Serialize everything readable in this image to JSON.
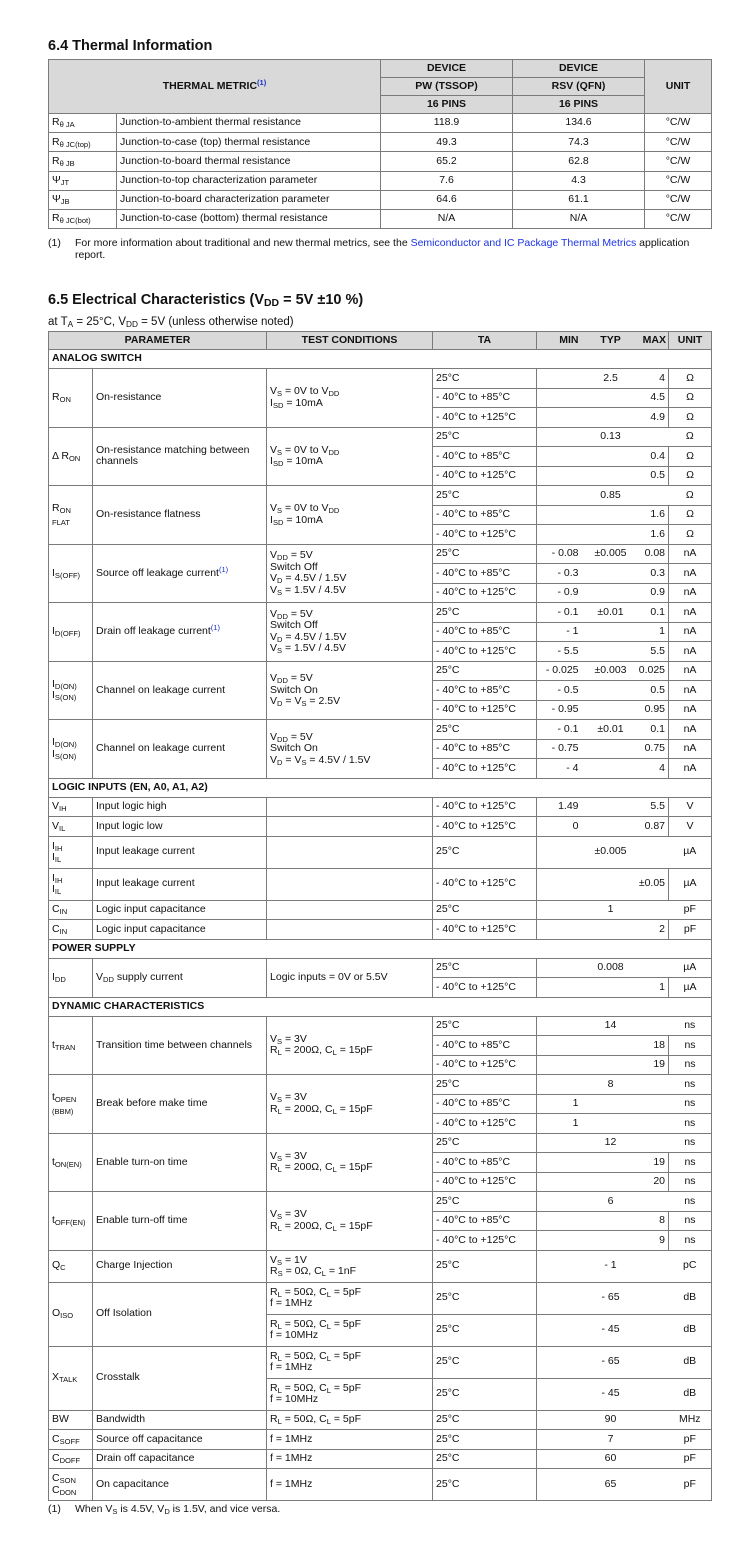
{
  "thermal": {
    "title": "6.4 Thermal Information",
    "header": {
      "metric": "THERMAL METRIC^{(1)}",
      "device1": "DEVICE",
      "device2": "DEVICE",
      "pkg1": "PW (TSSOP)",
      "pkg2": "RSV (QFN)",
      "pins1": "16 PINS",
      "pins2": "16 PINS",
      "unit": "UNIT"
    },
    "rows": [
      {
        "sym": "R_{θ JA}",
        "desc": "Junction-to-ambient thermal resistance",
        "pw": "118.9",
        "rsv": "134.6",
        "unit": "°C/W"
      },
      {
        "sym": "R_{θ JC(top)}",
        "desc": "Junction-to-case (top) thermal resistance",
        "pw": "49.3",
        "rsv": "74.3",
        "unit": "°C/W"
      },
      {
        "sym": "R_{θ JB}",
        "desc": "Junction-to-board thermal resistance",
        "pw": "65.2",
        "rsv": "62.8",
        "unit": "°C/W"
      },
      {
        "sym": "Ψ_{JT}",
        "desc": "Junction-to-top characterization parameter",
        "pw": "7.6",
        "rsv": "4.3",
        "unit": "°C/W"
      },
      {
        "sym": "Ψ_{JB}",
        "desc": "Junction-to-board characterization parameter",
        "pw": "64.6",
        "rsv": "61.1",
        "unit": "°C/W"
      },
      {
        "sym": "R_{θ JC(bot)}",
        "desc": "Junction-to-case (bottom) thermal resistance",
        "pw": "N/A",
        "rsv": "N/A",
        "unit": "°C/W"
      }
    ],
    "footnote": {
      "num": "(1)",
      "text_before": "For more information about traditional and new thermal metrics, see the ",
      "link": "Semiconductor and IC Package Thermal Metrics",
      "text_after": " application",
      "text_line2": "report."
    }
  },
  "electrical": {
    "title": "6.5 Electrical Characteristics (V_{DD} = 5V ±10 %)",
    "subtitle": "at T_{A} = 25°C, V_{DD} = 5V (unless otherwise noted)",
    "header": {
      "parameter": "PARAMETER",
      "conditions": "TEST CONDITIONS",
      "ta": "TA",
      "min": "MIN",
      "typ": "TYP",
      "max": "MAX",
      "unit": "UNIT"
    },
    "sections": [
      {
        "label": "ANALOG SWITCH",
        "groups": [
          {
            "sym": "R_{ON}",
            "param": "On-resistance",
            "cond": "V_{S} = 0V to V_{DD}\nI_{SD} = 10mA",
            "rows": [
              {
                "ta": "25°C",
                "min": "",
                "typ": "2.5",
                "max": "4",
                "unit": "Ω"
              },
              {
                "ta": "- 40°C to +85°C",
                "min": "",
                "typ": "",
                "max": "4.5",
                "unit": "Ω"
              },
              {
                "ta": "- 40°C to +125°C",
                "min": "",
                "typ": "",
                "max": "4.9",
                "unit": "Ω"
              }
            ]
          },
          {
            "sym": "Δ R_{ON}",
            "param": "On-resistance matching between\nchannels",
            "cond": "V_{S} = 0V to V_{DD}\nI_{SD} = 10mA",
            "rows": [
              {
                "ta": "25°C",
                "min": "",
                "typ": "0.13",
                "max": "",
                "unit": "Ω"
              },
              {
                "ta": "- 40°C to +85°C",
                "min": "",
                "typ": "",
                "max": "0.4",
                "unit": "Ω"
              },
              {
                "ta": "- 40°C to +125°C",
                "min": "",
                "typ": "",
                "max": "0.5",
                "unit": "Ω"
              }
            ]
          },
          {
            "sym": "R_{ON}\n_{FLAT}",
            "param": "On-resistance flatness",
            "cond": "V_{S} = 0V to V_{DD}\nI_{SD} = 10mA",
            "rows": [
              {
                "ta": "25°C",
                "min": "",
                "typ": "0.85",
                "max": "",
                "unit": "Ω"
              },
              {
                "ta": "- 40°C to +85°C",
                "min": "",
                "typ": "",
                "max": "1.6",
                "unit": "Ω"
              },
              {
                "ta": "- 40°C to +125°C",
                "min": "",
                "typ": "",
                "max": "1.6",
                "unit": "Ω"
              }
            ]
          },
          {
            "sym": "I_{S(OFF)}",
            "param": "Source off leakage current^{(1)}",
            "cond": "V_{DD} = 5V\nSwitch Off\nV_{D} = 4.5V / 1.5V\nV_{S} = 1.5V / 4.5V",
            "rows": [
              {
                "ta": "25°C",
                "min": "- 0.08",
                "typ": "±0.005",
                "max": "0.08",
                "unit": "nA"
              },
              {
                "ta": "- 40°C to +85°C",
                "min": "- 0.3",
                "typ": "",
                "max": "0.3",
                "unit": "nA"
              },
              {
                "ta": "- 40°C to +125°C",
                "min": "- 0.9",
                "typ": "",
                "max": "0.9",
                "unit": "nA"
              }
            ]
          },
          {
            "sym": "I_{D(OFF)}",
            "param": "Drain off leakage current^{(1)}",
            "cond": "V_{DD} = 5V\nSwitch Off\nV_{D} = 4.5V / 1.5V\nV_{S} = 1.5V / 4.5V",
            "rows": [
              {
                "ta": "25°C",
                "min": "- 0.1",
                "typ": "±0.01",
                "max": "0.1",
                "unit": "nA"
              },
              {
                "ta": "- 40°C to +85°C",
                "min": "- 1",
                "typ": "",
                "max": "1",
                "unit": "nA"
              },
              {
                "ta": "- 40°C to +125°C",
                "min": "- 5.5",
                "typ": "",
                "max": "5.5",
                "unit": "nA"
              }
            ]
          },
          {
            "sym": "I_{D(ON)}\nI_{S(ON)}",
            "param": "Channel on leakage current",
            "cond": "V_{DD} = 5V\nSwitch On\nV_{D} = V_{S} = 2.5V",
            "rows": [
              {
                "ta": "25°C",
                "min": "- 0.025",
                "typ": "±0.003",
                "max": "0.025",
                "unit": "nA"
              },
              {
                "ta": "- 40°C to +85°C",
                "min": "- 0.5",
                "typ": "",
                "max": "0.5",
                "unit": "nA"
              },
              {
                "ta": "- 40°C to +125°C",
                "min": "- 0.95",
                "typ": "",
                "max": "0.95",
                "unit": "nA"
              }
            ]
          },
          {
            "sym": "I_{D(ON)}\nI_{S(ON)}",
            "param": "Channel on leakage current",
            "cond": "V_{DD} = 5V\nSwitch On\nV_{D} = V_{S} = 4.5V / 1.5V",
            "rows": [
              {
                "ta": "25°C",
                "min": "- 0.1",
                "typ": "±0.01",
                "max": "0.1",
                "unit": "nA"
              },
              {
                "ta": "- 40°C to +85°C",
                "min": "- 0.75",
                "typ": "",
                "max": "0.75",
                "unit": "nA"
              },
              {
                "ta": "- 40°C to +125°C",
                "min": "- 4",
                "typ": "",
                "max": "4",
                "unit": "nA"
              }
            ]
          }
        ]
      },
      {
        "label": "LOGIC INPUTS (EN, A0, A1, A2)",
        "groups": [
          {
            "sym": "V_{IH}",
            "param": "Input logic high",
            "cond": "",
            "rows": [
              {
                "ta": "- 40°C to +125°C",
                "min": "1.49",
                "typ": "",
                "max": "5.5",
                "unit": "V"
              }
            ]
          },
          {
            "sym": "V_{IL}",
            "param": "Input logic low",
            "cond": "",
            "rows": [
              {
                "ta": "- 40°C to +125°C",
                "min": "0",
                "typ": "",
                "max": "0.87",
                "unit": "V"
              }
            ]
          },
          {
            "sym": "I_{IH}\nI_{IL}",
            "param": "Input leakage current",
            "cond": "",
            "tall": true,
            "rows": [
              {
                "ta": "25°C",
                "min": "",
                "typ": "±0.005",
                "max": "",
                "unit": "µA"
              }
            ]
          },
          {
            "sym": "I_{IH}\nI_{IL}",
            "param": "Input leakage current",
            "cond": "",
            "tall": true,
            "rows": [
              {
                "ta": "- 40°C to +125°C",
                "min": "",
                "typ": "",
                "max": "±0.05",
                "unit": "µA"
              }
            ]
          },
          {
            "sym": "C_{IN}",
            "param": "Logic input capacitance",
            "cond": "",
            "rows": [
              {
                "ta": "25°C",
                "min": "",
                "typ": "1",
                "max": "",
                "unit": "pF"
              }
            ]
          },
          {
            "sym": "C_{IN}",
            "param": "Logic input capacitance",
            "cond": "",
            "rows": [
              {
                "ta": "- 40°C to +125°C",
                "min": "",
                "typ": "",
                "max": "2",
                "unit": "pF"
              }
            ]
          }
        ]
      },
      {
        "label": "POWER SUPPLY",
        "groups": [
          {
            "sym": "I_{DD}",
            "param": "V_{DD} supply current",
            "cond": "Logic inputs = 0V or 5.5V",
            "rows": [
              {
                "ta": "25°C",
                "min": "",
                "typ": "0.008",
                "max": "",
                "unit": "µA"
              },
              {
                "ta": "- 40°C to +125°C",
                "min": "",
                "typ": "",
                "max": "1",
                "unit": "µA"
              }
            ]
          }
        ]
      },
      {
        "label": "DYNAMIC CHARACTERISTICS",
        "groups": [
          {
            "sym": "t_{TRAN}",
            "param": "Transition time between channels",
            "cond": "V_{S} = 3V\nR_{L} = 200Ω, C_{L} = 15pF",
            "rows": [
              {
                "ta": "25°C",
                "min": "",
                "typ": "14",
                "max": "",
                "unit": "ns"
              },
              {
                "ta": "- 40°C to +85°C",
                "min": "",
                "typ": "",
                "max": "18",
                "unit": "ns"
              },
              {
                "ta": "- 40°C to +125°C",
                "min": "",
                "typ": "",
                "max": "19",
                "unit": "ns"
              }
            ]
          },
          {
            "sym": "t_{OPEN}\n_{(BBM)}",
            "param": "Break before make time",
            "cond": "V_{S} = 3V\nR_{L} = 200Ω, C_{L} = 15pF",
            "rows": [
              {
                "ta": "25°C",
                "min": "",
                "typ": "8",
                "max": "",
                "unit": "ns"
              },
              {
                "ta": "- 40°C to +85°C",
                "min": "1",
                "typ": "",
                "max": "",
                "unit": "ns"
              },
              {
                "ta": "- 40°C to +125°C",
                "min": "1",
                "typ": "",
                "max": "",
                "unit": "ns"
              }
            ]
          },
          {
            "sym": "t_{ON(EN)}",
            "param": "Enable turn-on time",
            "cond": "V_{S} = 3V\nR_{L} = 200Ω, C_{L} = 15pF",
            "rows": [
              {
                "ta": "25°C",
                "min": "",
                "typ": "12",
                "max": "",
                "unit": "ns"
              },
              {
                "ta": "- 40°C to +85°C",
                "min": "",
                "typ": "",
                "max": "19",
                "unit": "ns"
              },
              {
                "ta": "- 40°C to +125°C",
                "min": "",
                "typ": "",
                "max": "20",
                "unit": "ns"
              }
            ]
          },
          {
            "sym": "t_{OFF(EN)}",
            "param": "Enable turn-off time",
            "cond": "V_{S} = 3V\nR_{L} = 200Ω, C_{L} = 15pF",
            "rows": [
              {
                "ta": "25°C",
                "min": "",
                "typ": "6",
                "max": "",
                "unit": "ns"
              },
              {
                "ta": "- 40°C to +85°C",
                "min": "",
                "typ": "",
                "max": "8",
                "unit": "ns"
              },
              {
                "ta": "- 40°C to +125°C",
                "min": "",
                "typ": "",
                "max": "9",
                "unit": "ns"
              }
            ]
          },
          {
            "sym": "Q_{C}",
            "param": "Charge Injection",
            "cond": "V_{S} = 1V\nR_{S} = 0Ω, C_{L} = 1nF",
            "tall": true,
            "rows": [
              {
                "ta": "25°C",
                "min": "",
                "typ": "- 1",
                "max": "",
                "unit": "pC"
              }
            ]
          },
          {
            "sym": "O_{ISO}",
            "param": "Off Isolation",
            "tall": true,
            "rows": [
              {
                "cond": "R_{L} = 50Ω, C_{L} = 5pF\nf = 1MHz",
                "ta": "25°C",
                "min": "",
                "typ": "- 65",
                "max": "",
                "unit": "dB"
              },
              {
                "cond": "R_{L} = 50Ω, C_{L} = 5pF\nf = 10MHz",
                "ta": "25°C",
                "min": "",
                "typ": "- 45",
                "max": "",
                "unit": "dB"
              }
            ]
          },
          {
            "sym": "X_{TALK}",
            "param": "Crosstalk",
            "tall": true,
            "rows": [
              {
                "cond": "R_{L} = 50Ω, C_{L} = 5pF\nf = 1MHz",
                "ta": "25°C",
                "min": "",
                "typ": "- 65",
                "max": "",
                "unit": "dB"
              },
              {
                "cond": "R_{L} = 50Ω, C_{L} = 5pF\nf = 10MHz",
                "ta": "25°C",
                "min": "",
                "typ": "- 45",
                "max": "",
                "unit": "dB"
              }
            ]
          },
          {
            "sym": "BW",
            "param": "Bandwidth",
            "cond": "R_{L} = 50Ω, C_{L} = 5pF",
            "rows": [
              {
                "ta": "25°C",
                "min": "",
                "typ": "90",
                "max": "",
                "unit": "MHz"
              }
            ]
          },
          {
            "sym": "C_{SOFF}",
            "param": "Source off capacitance",
            "cond": "f = 1MHz",
            "rows": [
              {
                "ta": "25°C",
                "min": "",
                "typ": "7",
                "max": "",
                "unit": "pF"
              }
            ]
          },
          {
            "sym": "C_{DOFF}",
            "param": "Drain off capacitance",
            "cond": "f = 1MHz",
            "rows": [
              {
                "ta": "25°C",
                "min": "",
                "typ": "60",
                "max": "",
                "unit": "pF"
              }
            ]
          },
          {
            "sym": "C_{SON}\nC_{DON}",
            "param": "On capacitance",
            "cond": "f = 1MHz",
            "tall": true,
            "rows": [
              {
                "ta": "25°C",
                "min": "",
                "typ": "65",
                "max": "",
                "unit": "pF"
              }
            ]
          }
        ]
      }
    ],
    "footnote": {
      "num": "(1)",
      "text": "When V_{S} is 4.5V, V_{D} is 1.5V, and vice versa."
    }
  },
  "colors": {
    "header_bg": "#d9d9d9",
    "border": "#7a7a7a",
    "link": "#1a33e6"
  }
}
